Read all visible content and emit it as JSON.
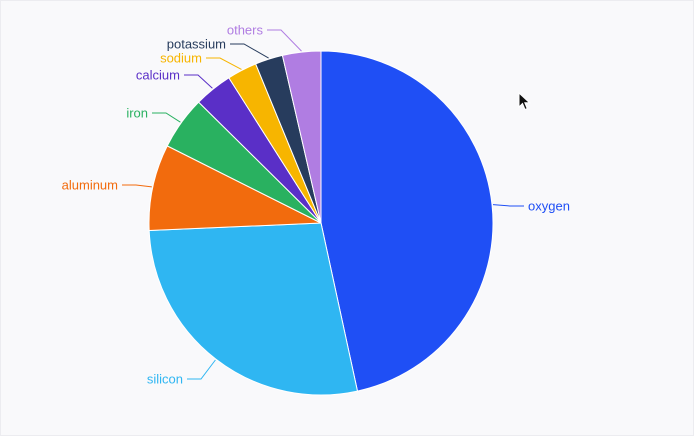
{
  "chart_data": {
    "type": "pie",
    "start_angle": "12 o'clock, clockwise",
    "slices": [
      {
        "label": "oxygen",
        "value": 46.6,
        "color": "#1f4ff5"
      },
      {
        "label": "silicon",
        "value": 27.7,
        "color": "#2fb6f2"
      },
      {
        "label": "aluminum",
        "value": 8.1,
        "color": "#f26b0d"
      },
      {
        "label": "iron",
        "value": 5.0,
        "color": "#29b160"
      },
      {
        "label": "calcium",
        "value": 3.6,
        "color": "#5a2fc7"
      },
      {
        "label": "sodium",
        "value": 2.8,
        "color": "#f7b500"
      },
      {
        "label": "potassium",
        "value": 2.6,
        "color": "#273c5d"
      },
      {
        "label": "others",
        "value": 3.6,
        "color": "#b07de2"
      }
    ]
  }
}
